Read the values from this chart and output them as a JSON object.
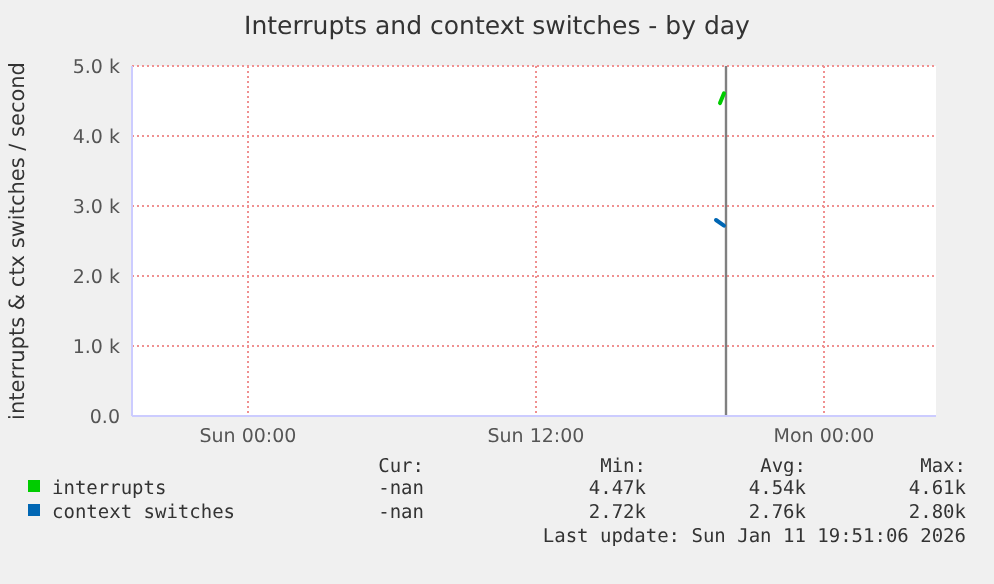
{
  "chart_data": {
    "type": "line",
    "title": "Interrupts and context switches - by day",
    "ylabel": "interrupts & ctx switches / second",
    "xlim": [
      "2026-01-10T19:10",
      "2026-01-12T04:40"
    ],
    "xticks": [
      {
        "value": "2026-01-11T00:00",
        "label": "Sun 00:00"
      },
      {
        "value": "2026-01-11T12:00",
        "label": "Sun 12:00"
      },
      {
        "value": "2026-01-12T00:00",
        "label": "Mon 00:00"
      }
    ],
    "ylim": [
      0,
      5000
    ],
    "yticks": [
      {
        "value": 0,
        "label": "0.0"
      },
      {
        "value": 1000,
        "label": "1.0 k"
      },
      {
        "value": 2000,
        "label": "2.0 k"
      },
      {
        "value": 3000,
        "label": "3.0 k"
      },
      {
        "value": 4000,
        "label": "4.0 k"
      },
      {
        "value": 5000,
        "label": "5.0 k"
      }
    ],
    "series": [
      {
        "name": "interrupts",
        "color": "#00cc00",
        "x": [
          "2026-01-11T19:40",
          "2026-01-11T19:50"
        ],
        "values": [
          4470,
          4610
        ]
      },
      {
        "name": "context switches",
        "color": "#0066b3",
        "x": [
          "2026-01-11T19:30",
          "2026-01-11T19:50"
        ],
        "values": [
          2800,
          2720
        ]
      }
    ],
    "ref_lines": [
      {
        "axis": "x",
        "value": "2026-01-11T19:55",
        "color": "#808080"
      }
    ],
    "grid": true,
    "legend": "bottom",
    "marker": "none",
    "line_style": "solid",
    "annotations": [
      "Cur:",
      "Min:",
      "Avg:",
      "Max:",
      "-nan",
      "4.47k",
      "4.54k",
      "4.61k",
      "-nan",
      "2.72k",
      "2.76k",
      "2.80k",
      "Last update: Sun Jan 11 19:51:06 2026"
    ]
  }
}
